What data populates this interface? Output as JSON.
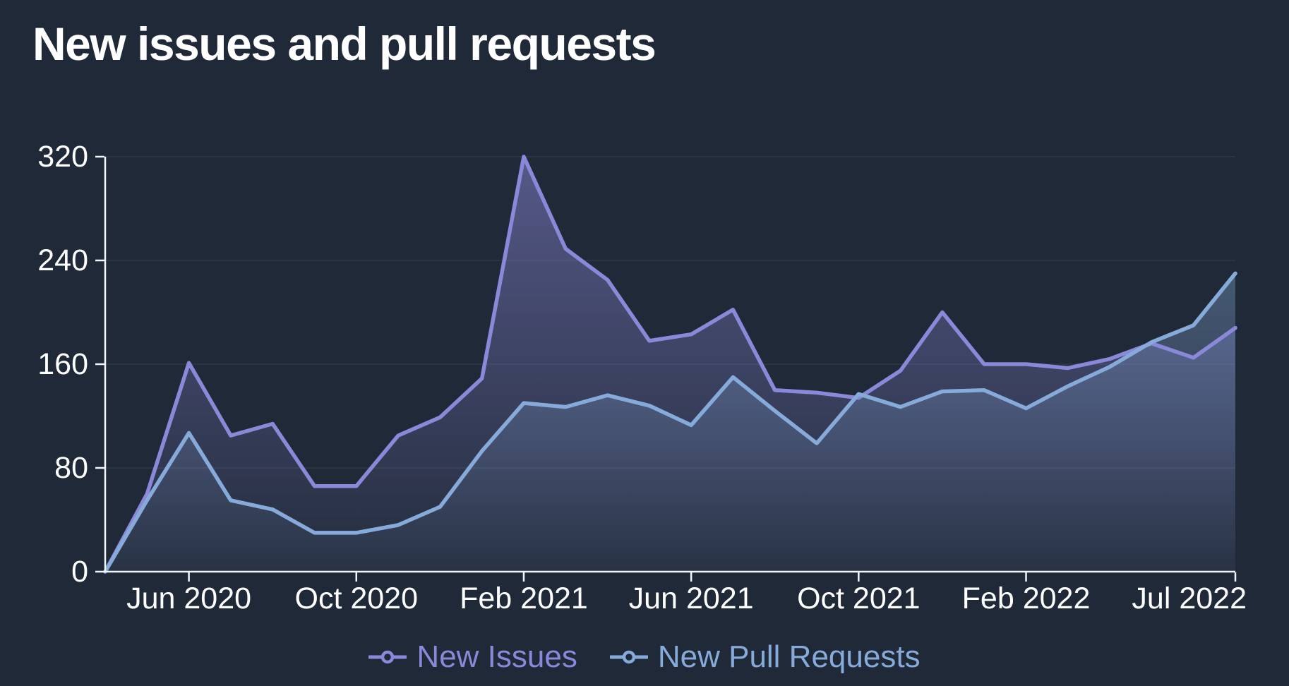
{
  "title": "New issues and pull requests",
  "colors": {
    "background": "#202937",
    "title_text": "#ffffff",
    "axis": "#f2f5f9",
    "tick_label": "#ffffff",
    "gridline": "#2b3443",
    "new_issues": "#8a88d8",
    "new_pull_requests": "#86abdb"
  },
  "chart_data": {
    "type": "area",
    "title": "New issues and pull requests",
    "x": [
      "Apr 2020",
      "May 2020",
      "Jun 2020",
      "Jul 2020",
      "Aug 2020",
      "Sep 2020",
      "Oct 2020",
      "Nov 2020",
      "Dec 2020",
      "Jan 2021",
      "Feb 2021",
      "Mar 2021",
      "Apr 2021",
      "May 2021",
      "Jun 2021",
      "Jul 2021",
      "Aug 2021",
      "Sep 2021",
      "Oct 2021",
      "Nov 2021",
      "Dec 2021",
      "Jan 2022",
      "Feb 2022",
      "Mar 2022",
      "Apr 2022",
      "May 2022",
      "Jun 2022",
      "Jul 2022"
    ],
    "series": [
      {
        "name": "New Issues",
        "color": "#8a88d8",
        "values": [
          0,
          60,
          161,
          105,
          114,
          66,
          66,
          105,
          119,
          149,
          320,
          249,
          225,
          178,
          183,
          202,
          140,
          138,
          134,
          155,
          200,
          160,
          160,
          157,
          164,
          176,
          165,
          188
        ]
      },
      {
        "name": "New Pull Requests",
        "color": "#86abdb",
        "values": [
          0,
          55,
          107,
          55,
          48,
          30,
          30,
          36,
          50,
          93,
          130,
          127,
          136,
          128,
          113,
          150,
          124,
          99,
          137,
          127,
          139,
          140,
          126,
          143,
          158,
          177,
          190,
          230
        ]
      }
    ],
    "xlabel": "",
    "ylabel": "",
    "ylim": [
      0,
      320
    ],
    "y_ticks": [
      0,
      80,
      160,
      240,
      320
    ],
    "x_tick_labels": [
      "Jun 2020",
      "Oct 2020",
      "Feb 2021",
      "Jun 2021",
      "Oct 2021",
      "Feb 2022",
      "Jul 2022"
    ],
    "x_tick_indices": [
      2,
      6,
      10,
      14,
      18,
      22,
      27
    ],
    "grid": true,
    "legend_position": "bottom"
  },
  "legend": {
    "items": [
      {
        "label": "New Issues",
        "color": "#8a88d8",
        "icon": "line-circle-marker"
      },
      {
        "label": "New Pull Requests",
        "color": "#86abdb",
        "icon": "line-circle-marker"
      }
    ]
  }
}
